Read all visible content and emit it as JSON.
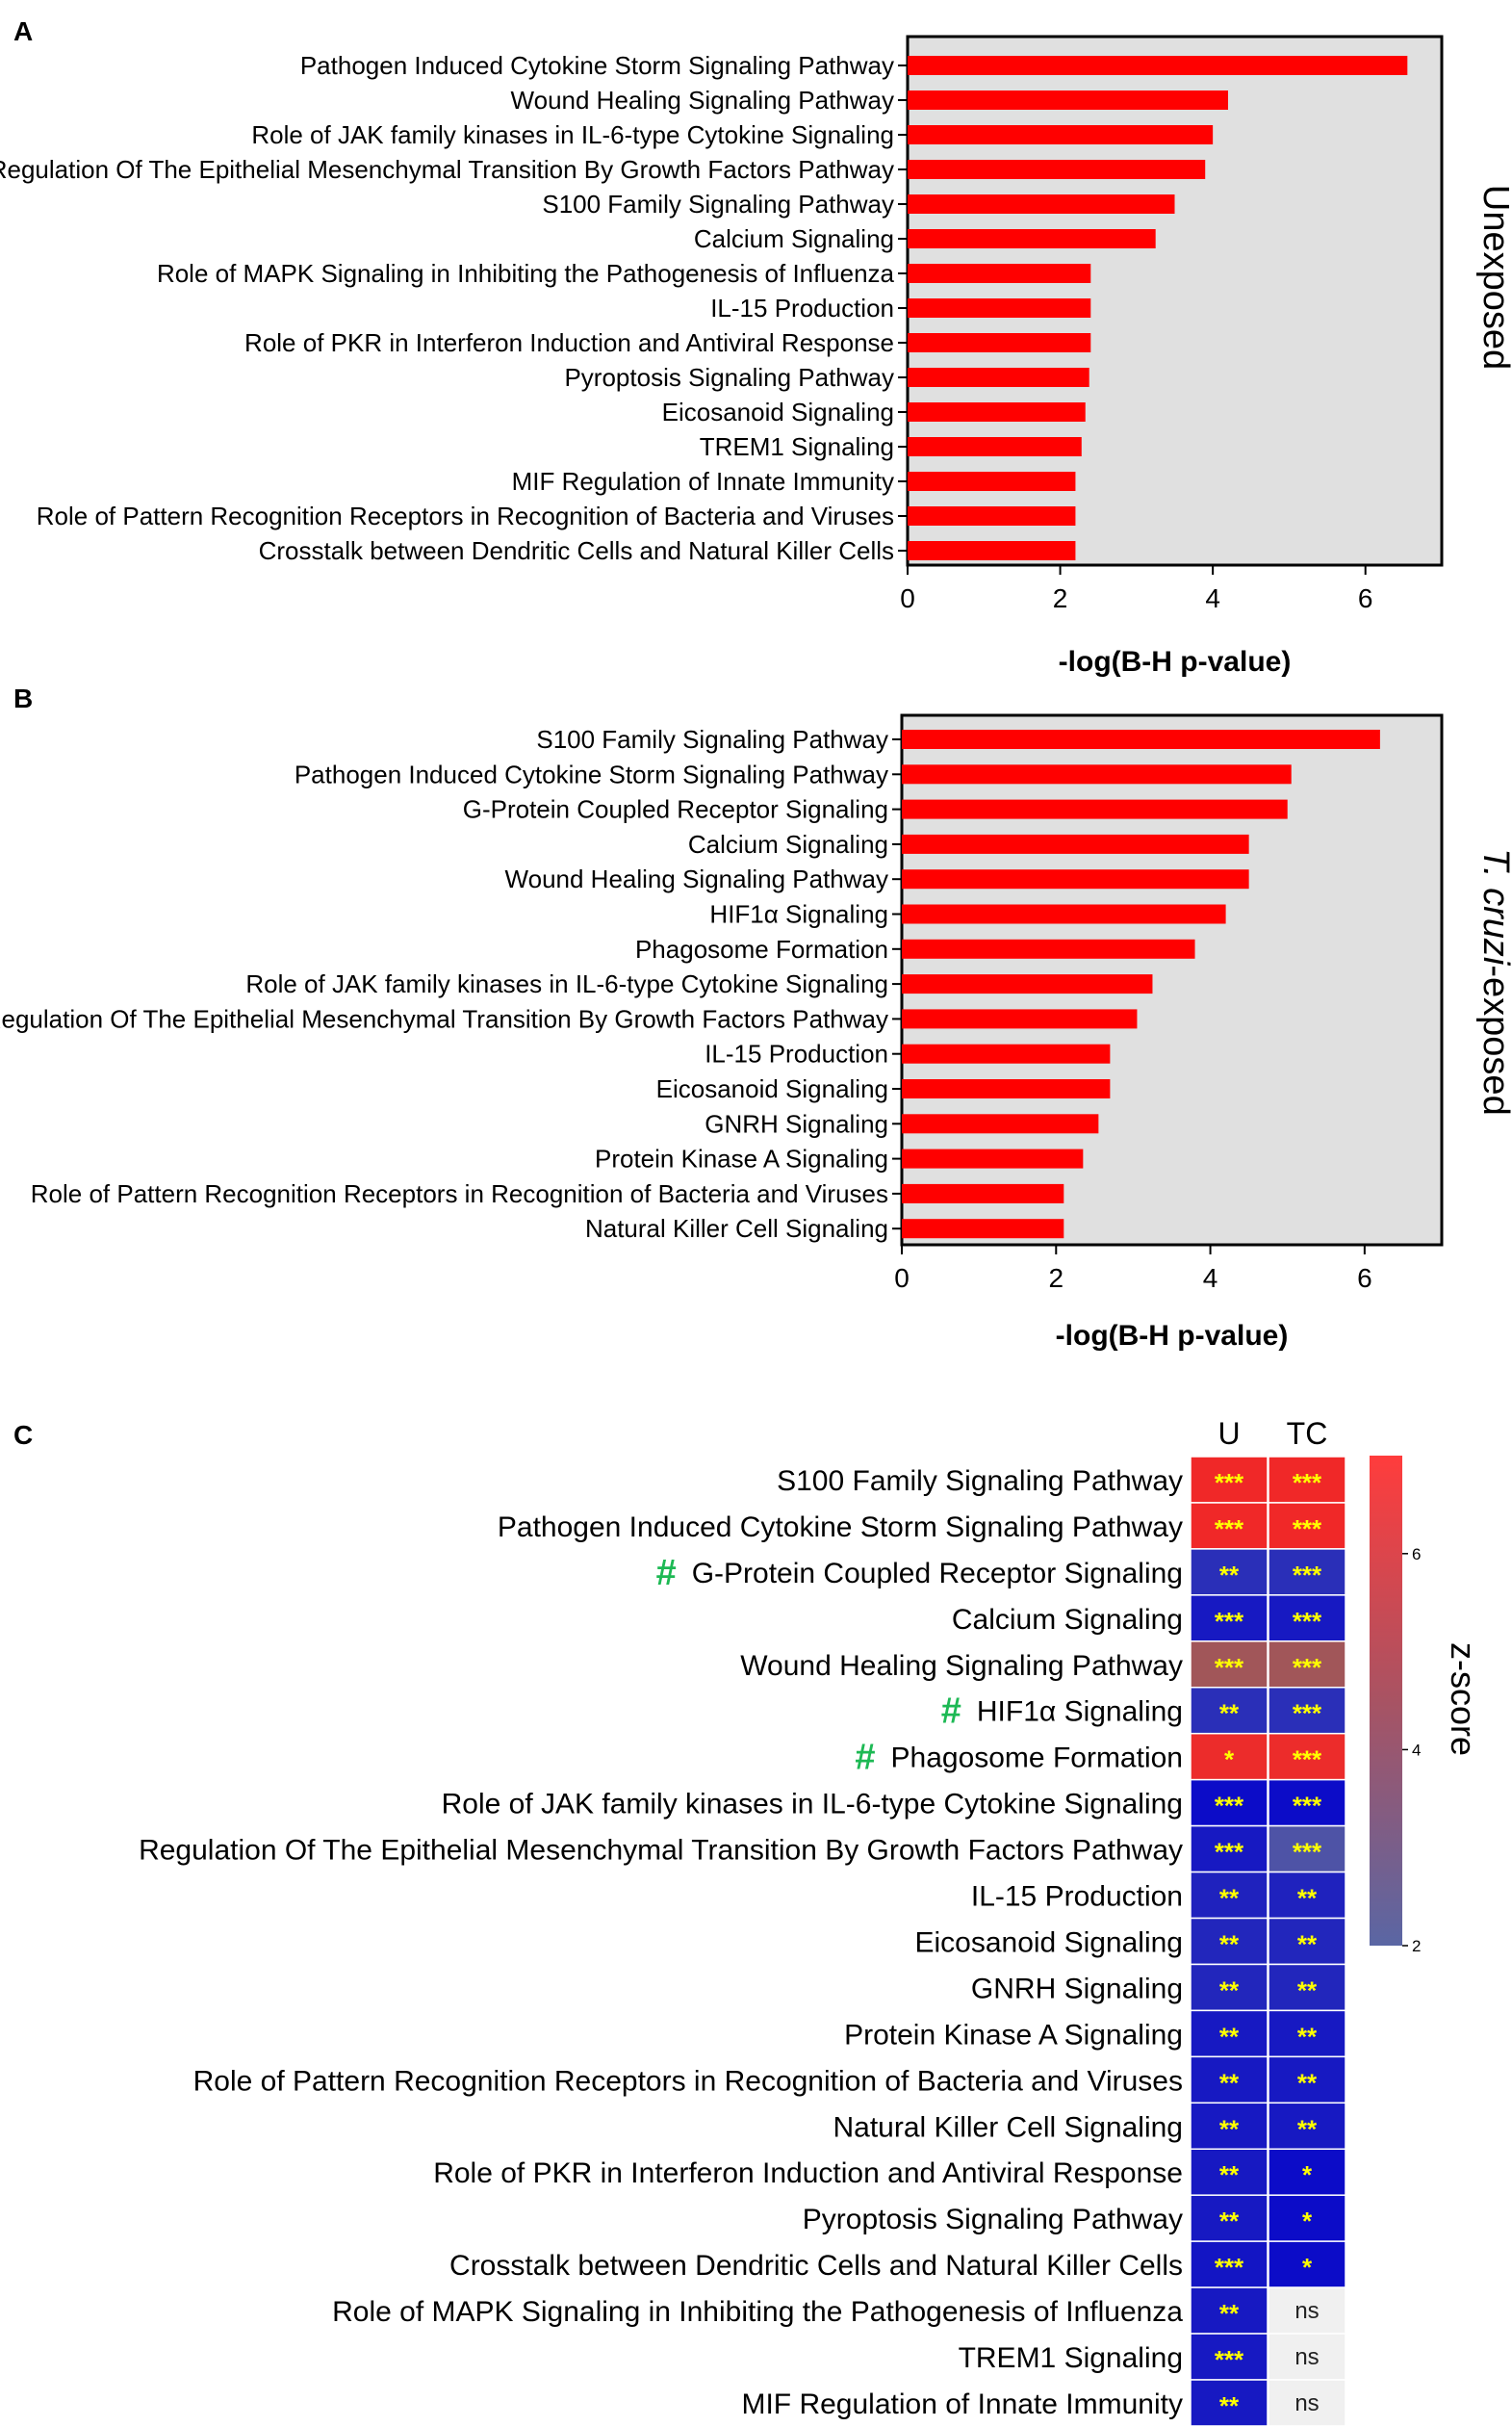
{
  "chart_data": [
    {
      "type": "bar",
      "orientation": "horizontal",
      "panel_label": "A",
      "side_title": "Unexposed",
      "xlabel": "-log(B-H p-value)",
      "xlim": [
        0,
        7
      ],
      "xticks": [
        0,
        2,
        4,
        6
      ],
      "bar_color": "#ff0000",
      "background_color": "#e0e0e0",
      "categories": [
        "Pathogen Induced Cytokine Storm Signaling Pathway",
        "Wound Healing Signaling Pathway",
        "Role of JAK family kinases in IL-6-type Cytokine Signaling",
        "Regulation Of The Epithelial Mesenchymal Transition By Growth Factors Pathway",
        "S100 Family Signaling Pathway",
        "Calcium Signaling",
        "Role of MAPK Signaling in Inhibiting the Pathogenesis of Influenza",
        "IL-15 Production",
        "Role of PKR in Interferon Induction and Antiviral Response",
        "Pyroptosis Signaling Pathway",
        "Eicosanoid Signaling",
        "TREM1 Signaling",
        "MIF Regulation of Innate Immunity",
        "Role of Pattern Recognition Receptors in Recognition of Bacteria and Viruses",
        "Crosstalk between Dendritic Cells and Natural Killer Cells"
      ],
      "values": [
        6.55,
        4.2,
        4.0,
        3.9,
        3.5,
        3.25,
        2.4,
        2.4,
        2.4,
        2.38,
        2.33,
        2.28,
        2.2,
        2.2,
        2.2
      ]
    },
    {
      "type": "bar",
      "orientation": "horizontal",
      "panel_label": "B",
      "side_title_italic": "T. cruzi",
      "side_title_rest": "-exposed",
      "xlabel": "-log(B-H p-value)",
      "xlim": [
        0,
        7
      ],
      "xticks": [
        0,
        2,
        4,
        6
      ],
      "bar_color": "#ff0000",
      "background_color": "#e0e0e0",
      "categories": [
        "S100 Family Signaling Pathway",
        "Pathogen Induced Cytokine Storm Signaling Pathway",
        "G-Protein Coupled Receptor Signaling",
        "Calcium Signaling",
        "Wound Healing Signaling Pathway",
        "HIF1α Signaling",
        "Phagosome Formation",
        "Role of JAK family kinases in IL-6-type Cytokine Signaling",
        "Regulation Of The Epithelial Mesenchymal Transition By Growth Factors Pathway",
        "IL-15 Production",
        "Eicosanoid Signaling",
        "GNRH Signaling",
        "Protein Kinase A Signaling",
        "Role of Pattern Recognition Receptors in Recognition of Bacteria and Viruses",
        "Natural Killer Cell Signaling"
      ],
      "values": [
        6.2,
        5.05,
        5.0,
        4.5,
        4.5,
        4.2,
        3.8,
        3.25,
        3.05,
        2.7,
        2.7,
        2.55,
        2.35,
        2.1,
        2.1
      ]
    },
    {
      "type": "heatmap",
      "panel_label": "C",
      "columns": [
        "U",
        "TC"
      ],
      "colorbar_label": "z-score",
      "colorbar_ticks": [
        2,
        4,
        6
      ],
      "colorbar_range": [
        2,
        7
      ],
      "hash_symbol": "#",
      "hash_color": "#1db954",
      "rows": [
        {
          "label": "S100 Family Signaling Pathway",
          "hash": false,
          "z": [
            7,
            7
          ],
          "sig": [
            "***",
            "***"
          ]
        },
        {
          "label": "Pathogen Induced Cytokine Storm Signaling Pathway",
          "hash": false,
          "z": [
            7,
            7
          ],
          "sig": [
            "***",
            "***"
          ]
        },
        {
          "label": "G-Protein Coupled Receptor Signaling",
          "hash": true,
          "z": [
            2.8,
            2.8
          ],
          "sig": [
            "**",
            "***"
          ]
        },
        {
          "label": "Calcium Signaling",
          "hash": false,
          "z": [
            2.3,
            2.3
          ],
          "sig": [
            "***",
            "***"
          ]
        },
        {
          "label": "Wound Healing Signaling Pathway",
          "hash": false,
          "z": [
            4.7,
            4.7
          ],
          "sig": [
            "***",
            "***"
          ]
        },
        {
          "label": "HIF1α Signaling",
          "hash": true,
          "z": [
            2.8,
            2.8
          ],
          "sig": [
            "**",
            "***"
          ]
        },
        {
          "label": "Phagosome Formation",
          "hash": true,
          "z": [
            6.8,
            6.8
          ],
          "sig": [
            "*",
            "***"
          ]
        },
        {
          "label": "Role of JAK family kinases in IL-6-type Cytokine Signaling",
          "hash": false,
          "z": [
            2.0,
            2.0
          ],
          "sig": [
            "***",
            "***"
          ]
        },
        {
          "label": "Regulation Of The Epithelial Mesenchymal Transition By Growth Factors Pathway",
          "hash": false,
          "z": [
            2.3,
            3.5
          ],
          "sig": [
            "***",
            "***"
          ]
        },
        {
          "label": "IL-15 Production",
          "hash": false,
          "z": [
            2.5,
            2.5
          ],
          "sig": [
            "**",
            "**"
          ]
        },
        {
          "label": "Eicosanoid Signaling",
          "hash": false,
          "z": [
            2.6,
            2.6
          ],
          "sig": [
            "**",
            "**"
          ]
        },
        {
          "label": "GNRH Signaling",
          "hash": false,
          "z": [
            2.6,
            2.6
          ],
          "sig": [
            "**",
            "**"
          ]
        },
        {
          "label": "Protein Kinase A Signaling",
          "hash": false,
          "z": [
            2.3,
            2.3
          ],
          "sig": [
            "**",
            "**"
          ]
        },
        {
          "label": "Role of Pattern Recognition Receptors in Recognition of Bacteria and Viruses",
          "hash": false,
          "z": [
            2.3,
            2.3
          ],
          "sig": [
            "**",
            "**"
          ]
        },
        {
          "label": "Natural Killer Cell Signaling",
          "hash": false,
          "z": [
            2.3,
            2.3
          ],
          "sig": [
            "**",
            "**"
          ]
        },
        {
          "label": "Role of PKR in Interferon Induction and Antiviral Response",
          "hash": false,
          "z": [
            2.3,
            2.0
          ],
          "sig": [
            "**",
            "*"
          ]
        },
        {
          "label": "Pyroptosis Signaling Pathway",
          "hash": false,
          "z": [
            2.3,
            2.0
          ],
          "sig": [
            "**",
            "*"
          ]
        },
        {
          "label": "Crosstalk between Dendritic Cells and Natural Killer Cells",
          "hash": false,
          "z": [
            2.2,
            2.0
          ],
          "sig": [
            "***",
            "*"
          ]
        },
        {
          "label": "Role of MAPK Signaling in Inhibiting the Pathogenesis of Influenza",
          "hash": false,
          "z": [
            2.3,
            null
          ],
          "sig": [
            "**",
            "ns"
          ]
        },
        {
          "label": "TREM1 Signaling",
          "hash": false,
          "z": [
            2.3,
            null
          ],
          "sig": [
            "***",
            "ns"
          ]
        },
        {
          "label": "MIF Regulation of Innate Immunity",
          "hash": false,
          "z": [
            2.3,
            null
          ],
          "sig": [
            "**",
            "ns"
          ]
        }
      ]
    }
  ]
}
